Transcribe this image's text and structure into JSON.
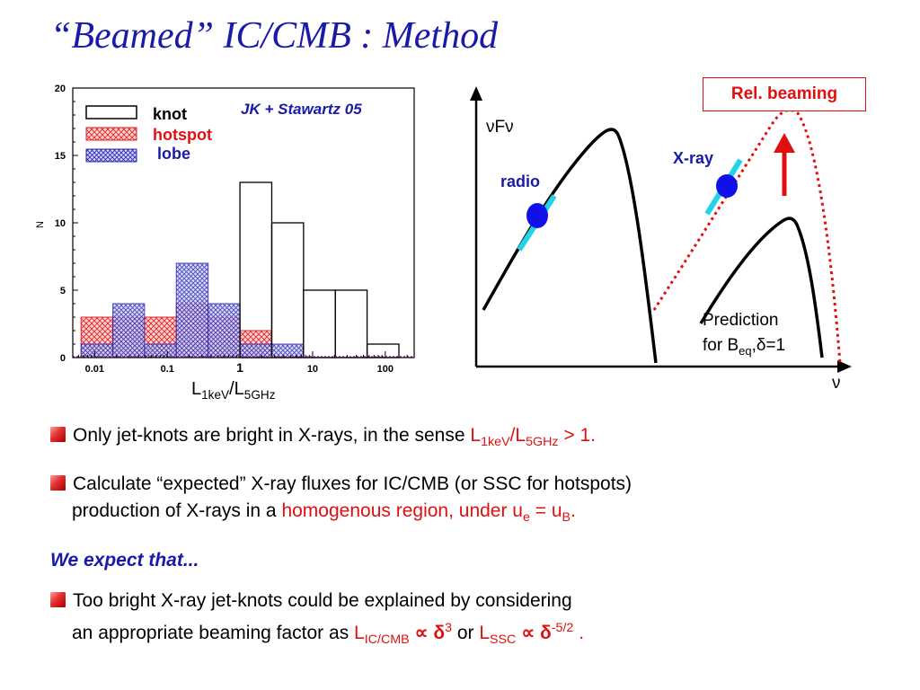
{
  "slide": {
    "title": "“Beamed” IC/CMB : Method"
  },
  "chart_data": [
    {
      "type": "bar",
      "title": "",
      "xlabel": "L1keV/L5GHz",
      "ylabel": "N",
      "xscale": "log",
      "xlim": [
        0.005,
        250
      ],
      "ylim": [
        0,
        20
      ],
      "x_ticks": [
        "0.01",
        "0.1",
        "1",
        "10",
        "100"
      ],
      "y_ticks": [
        "0",
        "5",
        "10",
        "15",
        "20"
      ],
      "bin_edges": [
        0.0065,
        0.0178,
        0.0486,
        0.133,
        0.365,
        1.0,
        2.74,
        7.5,
        20.5,
        56.2,
        154
      ],
      "series": [
        {
          "name": "knot",
          "color": "#000000",
          "values": [
            0,
            0,
            0,
            0,
            0,
            13,
            10,
            5,
            5,
            1
          ]
        },
        {
          "name": "hotspot",
          "color": "#e02020",
          "values": [
            3,
            3,
            3,
            4,
            3,
            2,
            0,
            0,
            0,
            0
          ]
        },
        {
          "name": "lobe",
          "color": "#2a2ab0",
          "values": [
            1,
            4,
            1,
            7,
            4,
            1,
            1,
            0,
            0,
            0
          ]
        }
      ],
      "legend": {
        "position": "top-left",
        "labels": [
          "knot",
          "hotspot",
          "lobe"
        ]
      },
      "annotation": "JK + Stawartz 05"
    }
  ],
  "sed": {
    "y_label": "νFν",
    "x_label": "ν",
    "radio_label": "radio",
    "xray_label": "X-ray",
    "rel_beaming_label": "Rel. beaming",
    "prediction_line1": "Prediction",
    "prediction_line2_pre": "for B",
    "prediction_line2_sub": "eq",
    "prediction_line2_post": ",δ=1"
  },
  "xaxis_label": {
    "L": "L",
    "sub1": "1keV",
    "slash": "/L",
    "sub2": "5GHz"
  },
  "bullets": {
    "b1_text": "Only jet-knots are bright in X-rays, in the sense ",
    "b1_L1": "L",
    "b1_sub1": "1keV",
    "b1_slash": "/L",
    "b1_sub2": "5GHz",
    "b1_tail": " > 1.",
    "b2_line1": "Calculate “expected” X-ray fluxes for IC/CMB (or SSC for hotspots)",
    "b2_line2_pre": "production of X-rays in a ",
    "b2_line2_red": "homogenous region, under u",
    "b2_sub_e": "e",
    "b2_eq": " = u",
    "b2_sub_b": "B",
    "b2_dot": ".",
    "expect": "We expect that...",
    "b3_line1": "Too bright X-ray jet-knots could be explained by considering",
    "b3_line2_pre": "an appropriate beaming factor as ",
    "b3_L": "L",
    "b3_sub_ic": "IC/CMB",
    "b3_prop": " ∝ δ",
    "b3_sup3": "3",
    "b3_or": " or ",
    "b3_L2": "L",
    "b3_sub_ssc": "SSC",
    "b3_prop2": " ∝ δ",
    "b3_sup52": "-5/2",
    "b3_end": " ."
  }
}
